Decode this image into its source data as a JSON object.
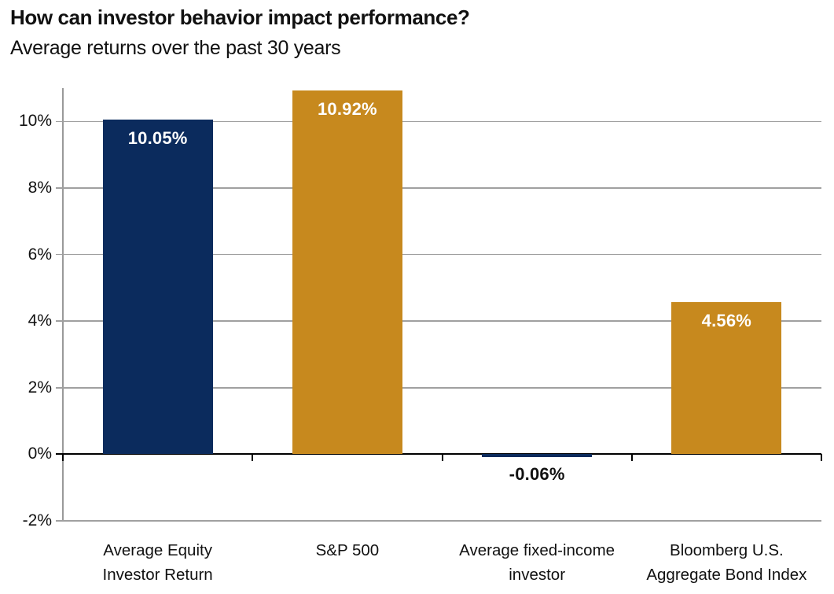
{
  "chart": {
    "title": "How can investor behavior impact performance?",
    "subtitle": "Average returns over the past 30 years"
  },
  "colors": {
    "navy": "#0B2B5D",
    "gold": "#C7891E",
    "gridline": "#A0A0A0",
    "axis": "#000000",
    "text": "#111111",
    "value_label_on_bar": "#FFFFFF"
  },
  "chart_data": {
    "type": "bar",
    "title": "How can investor behavior impact performance?",
    "subtitle": "Average returns over the past 30 years",
    "categories": [
      "Average Equity\nInvestor Return",
      "S&P 500",
      "Average fixed-income\ninvestor",
      "Bloomberg U.S.\nAggregate Bond Index"
    ],
    "values": [
      10.05,
      10.92,
      -0.06,
      4.56
    ],
    "value_labels": [
      "10.05%",
      "10.92%",
      "-0.06%",
      "4.56%"
    ],
    "bar_colors": [
      "#0B2B5D",
      "#C7891E",
      "#0B2B5D",
      "#C7891E"
    ],
    "value_label_colors": [
      "#FFFFFF",
      "#FFFFFF",
      "#111111",
      "#FFFFFF"
    ],
    "value_label_position": [
      "inside-top",
      "inside-top",
      "below",
      "inside-top"
    ],
    "xlabel": "",
    "ylabel": "",
    "ylim": [
      -2,
      11
    ],
    "yticks": [
      {
        "value": 10,
        "label": "10%"
      },
      {
        "value": 8,
        "label": "8%"
      },
      {
        "value": 6,
        "label": "6%"
      },
      {
        "value": 4,
        "label": "4%"
      },
      {
        "value": 2,
        "label": "2%"
      },
      {
        "value": 0,
        "label": "0%"
      },
      {
        "value": -2,
        "label": "-2%"
      }
    ],
    "grid": true,
    "legend": "none"
  }
}
